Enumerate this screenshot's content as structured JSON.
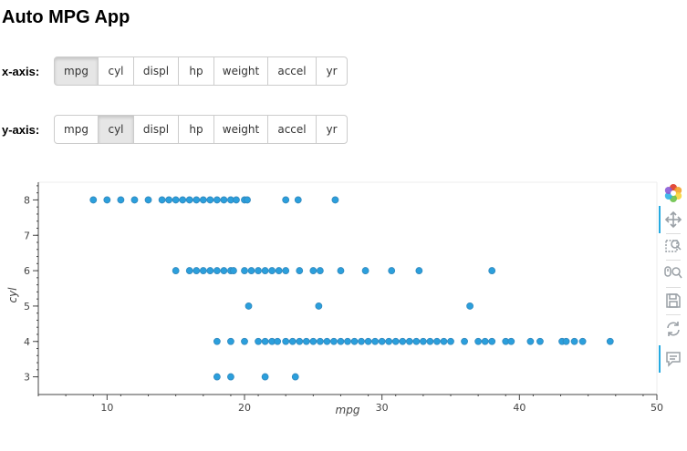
{
  "app": {
    "title": "Auto MPG App"
  },
  "x_axis": {
    "label": "x-axis:",
    "options": [
      "mpg",
      "cyl",
      "displ",
      "hp",
      "weight",
      "accel",
      "yr"
    ],
    "selected": "mpg"
  },
  "y_axis": {
    "label": "y-axis:",
    "options": [
      "mpg",
      "cyl",
      "displ",
      "hp",
      "weight",
      "accel",
      "yr"
    ],
    "selected": "cyl"
  },
  "toolbar": {
    "tools": [
      "bokeh-logo-icon",
      "pan-icon",
      "box-zoom-icon",
      "wheel-zoom-icon",
      "save-icon",
      "reset-icon",
      "hover-icon"
    ],
    "active": [
      "pan-icon",
      "hover-icon"
    ]
  },
  "colors": {
    "point": "#3288bd",
    "point_fill": "#2b9fdc",
    "tool_active": "#26aae1"
  },
  "chart_data": {
    "type": "scatter",
    "xlabel": "mpg",
    "ylabel": "cyl",
    "xlim": [
      5,
      50
    ],
    "ylim": [
      2.5,
      8.5
    ],
    "x_ticks": [
      10,
      20,
      30,
      40,
      50
    ],
    "y_ticks": [
      3,
      4,
      5,
      6,
      7,
      8
    ],
    "grid": false,
    "series": [
      {
        "points": [
          [
            9,
            8
          ],
          [
            10,
            8
          ],
          [
            11,
            8
          ],
          [
            12,
            8
          ],
          [
            13,
            8
          ],
          [
            14,
            8
          ],
          [
            14.5,
            8
          ],
          [
            15,
            8
          ],
          [
            15.5,
            8
          ],
          [
            16,
            8
          ],
          [
            16.5,
            8
          ],
          [
            17,
            8
          ],
          [
            17.5,
            8
          ],
          [
            18,
            8
          ],
          [
            18.5,
            8
          ],
          [
            19,
            8
          ],
          [
            19.4,
            8
          ],
          [
            20,
            8
          ],
          [
            20.2,
            8
          ],
          [
            23,
            8
          ],
          [
            23.9,
            8
          ],
          [
            26.6,
            8
          ],
          [
            15,
            6
          ],
          [
            16,
            6
          ],
          [
            16.5,
            6
          ],
          [
            17,
            6
          ],
          [
            17.5,
            6
          ],
          [
            18,
            6
          ],
          [
            18.5,
            6
          ],
          [
            19,
            6
          ],
          [
            19.2,
            6
          ],
          [
            20,
            6
          ],
          [
            20.5,
            6
          ],
          [
            21,
            6
          ],
          [
            21.5,
            6
          ],
          [
            22,
            6
          ],
          [
            22.5,
            6
          ],
          [
            23,
            6
          ],
          [
            24,
            6
          ],
          [
            25,
            6
          ],
          [
            25.5,
            6
          ],
          [
            27,
            6
          ],
          [
            28.8,
            6
          ],
          [
            30.7,
            6
          ],
          [
            32.7,
            6
          ],
          [
            38,
            6
          ],
          [
            20.3,
            5
          ],
          [
            25.4,
            5
          ],
          [
            36.4,
            5
          ],
          [
            18,
            4
          ],
          [
            19,
            4
          ],
          [
            20,
            4
          ],
          [
            21,
            4
          ],
          [
            21.5,
            4
          ],
          [
            22,
            4
          ],
          [
            22.4,
            4
          ],
          [
            23,
            4
          ],
          [
            23.5,
            4
          ],
          [
            24,
            4
          ],
          [
            24.5,
            4
          ],
          [
            25,
            4
          ],
          [
            25.5,
            4
          ],
          [
            26,
            4
          ],
          [
            26.5,
            4
          ],
          [
            27,
            4
          ],
          [
            27.5,
            4
          ],
          [
            28,
            4
          ],
          [
            28.5,
            4
          ],
          [
            29,
            4
          ],
          [
            29.5,
            4
          ],
          [
            30,
            4
          ],
          [
            30.5,
            4
          ],
          [
            31,
            4
          ],
          [
            31.5,
            4
          ],
          [
            32,
            4
          ],
          [
            32.5,
            4
          ],
          [
            33,
            4
          ],
          [
            33.5,
            4
          ],
          [
            34,
            4
          ],
          [
            34.5,
            4
          ],
          [
            35,
            4
          ],
          [
            36,
            4
          ],
          [
            37,
            4
          ],
          [
            37.5,
            4
          ],
          [
            38,
            4
          ],
          [
            39,
            4
          ],
          [
            39.4,
            4
          ],
          [
            40.8,
            4
          ],
          [
            41.5,
            4
          ],
          [
            43.1,
            4
          ],
          [
            43.4,
            4
          ],
          [
            44,
            4
          ],
          [
            44.6,
            4
          ],
          [
            46.6,
            4
          ],
          [
            18,
            3
          ],
          [
            19,
            3
          ],
          [
            21.5,
            3
          ],
          [
            23.7,
            3
          ]
        ]
      }
    ]
  }
}
